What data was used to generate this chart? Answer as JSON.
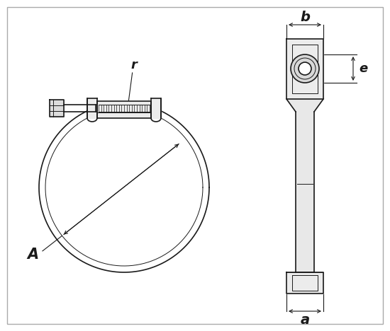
{
  "bg_color": "#ffffff",
  "line_color": "#1a1a1a",
  "fig_width": 5.5,
  "fig_height": 4.68,
  "label_A": "A",
  "label_r": "r",
  "label_b": "b",
  "label_a": "a",
  "label_e": "e",
  "border_color": "#aaaaaa"
}
